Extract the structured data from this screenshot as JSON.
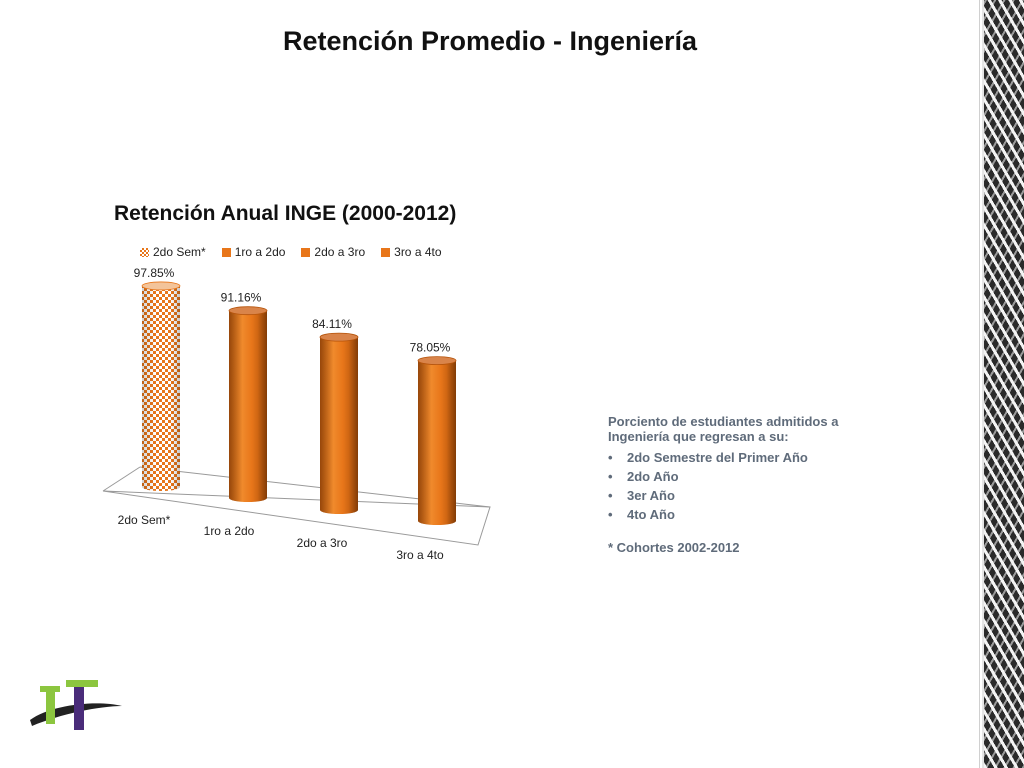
{
  "slide": {
    "title": "Retención Promedio - Ingeniería"
  },
  "chart_data": {
    "type": "bar",
    "title": "Retención Anual INGE (2000-2012)",
    "categories": [
      "2do Sem*",
      "1ro a 2do",
      "2do a 3ro",
      "3ro a 4to"
    ],
    "values": [
      97.85,
      91.16,
      84.11,
      78.05
    ],
    "value_labels": [
      "97.85%",
      "91.16%",
      "84.11%",
      "78.05%"
    ],
    "unit": "%",
    "legend": [
      "2do Sem*",
      "1ro a 2do",
      "2do a 3ro",
      "3ro a 4to"
    ],
    "legend_position": "top",
    "style": "3d-cylinder",
    "colors": {
      "bar": "#e8761a",
      "bar_dark": "#b5530a",
      "pattern": "#e8761a"
    },
    "grid": false
  },
  "side_panel": {
    "heading": "Porciento de estudiantes admitidos a Ingeniería que regresan a su:",
    "items": [
      "2do Semestre del Primer Año",
      "2do Año",
      "3er Año",
      "4to Año"
    ],
    "note": "* Cohortes 2002-2012"
  }
}
